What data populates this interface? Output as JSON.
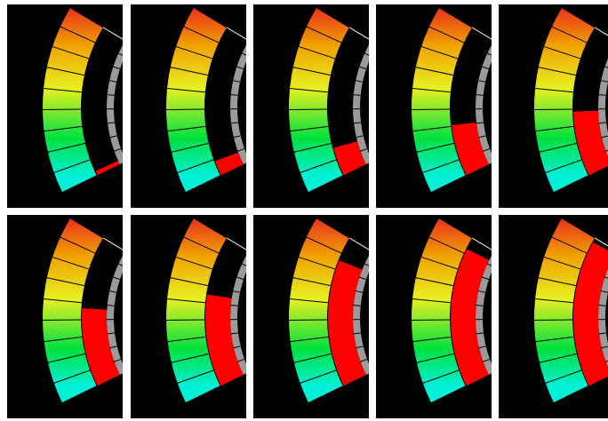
{
  "gauges": [
    {
      "level": 0.03
    },
    {
      "level": 0.1
    },
    {
      "level": 0.19
    },
    {
      "level": 0.34
    },
    {
      "level": 0.43
    },
    {
      "level": 0.52
    },
    {
      "level": 0.61
    },
    {
      "level": 0.84
    },
    {
      "level": 0.92
    },
    {
      "level": 0.97
    }
  ],
  "colors": {
    "panel_background": "#000000",
    "page_background": "#ffffff",
    "level_fill": "#ff0000",
    "track": "#9a9a9a",
    "scale_bottom": "#00f0d8",
    "scale_lower": "#00e040",
    "scale_middle": "#e8f020",
    "scale_upper": "#f0a000",
    "scale_top": "#e83020",
    "segment_lines": "#000000"
  },
  "segments": 9
}
